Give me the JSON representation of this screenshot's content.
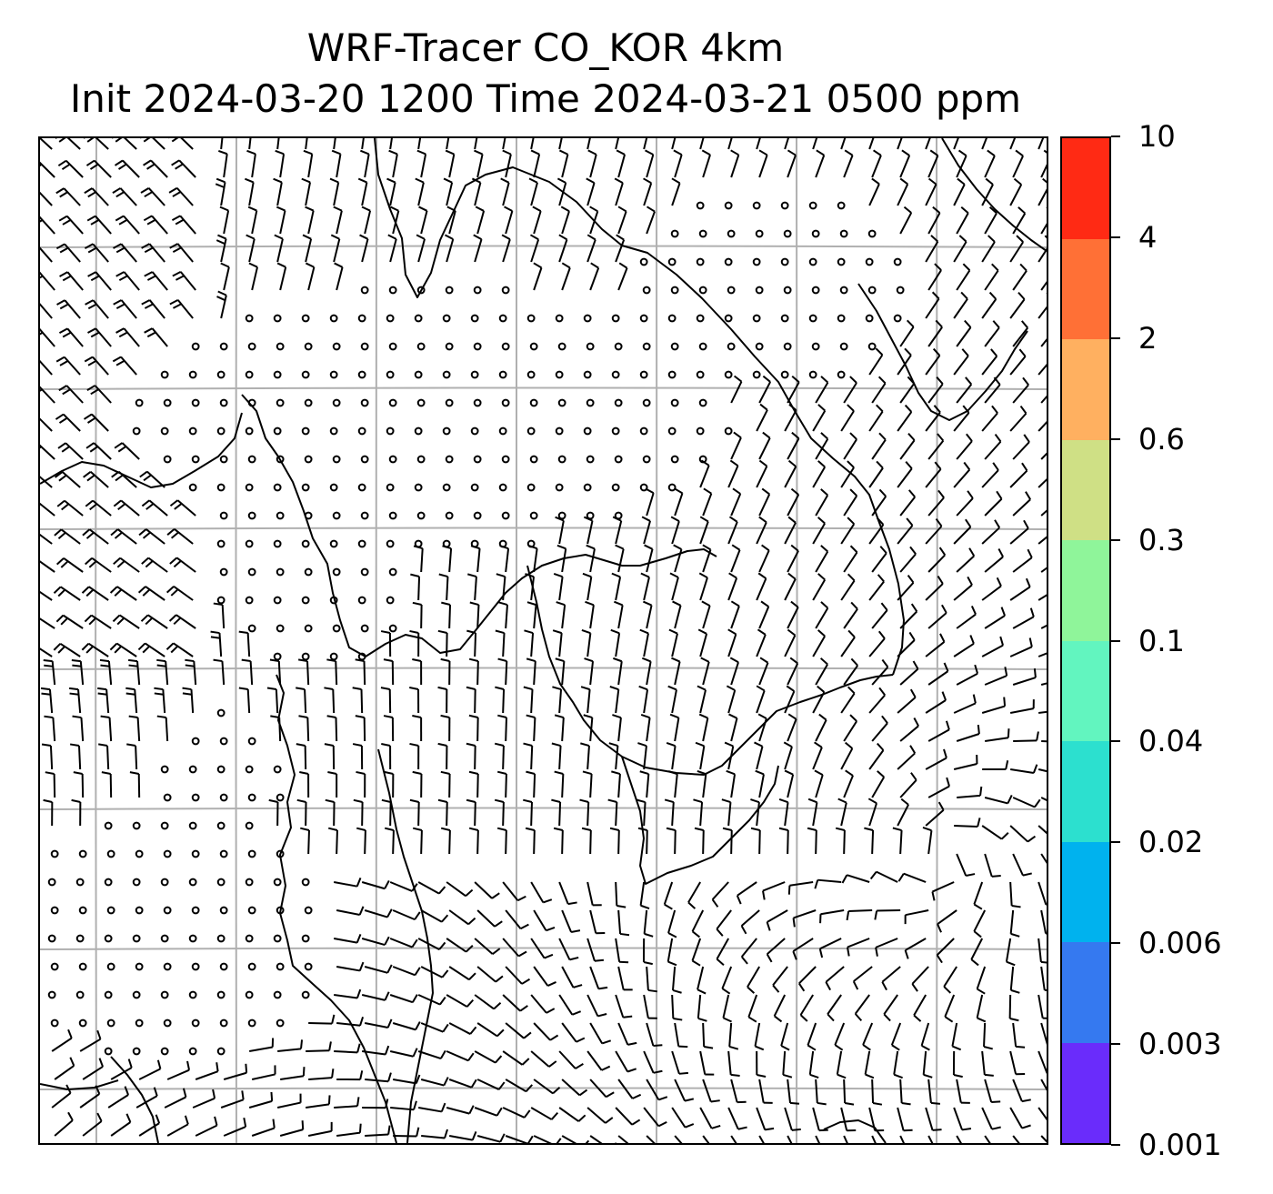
{
  "header": {
    "title_line1": "WRF-Tracer CO_KOR 4km",
    "title_line2": "Init 2024-03-20 1200 Time 2024-03-21 0500 ppm"
  },
  "colorbar": {
    "unit": "ppm",
    "levels": [
      "0.001",
      "0.003",
      "0.006",
      "0.02",
      "0.04",
      "0.1",
      "0.3",
      "0.6",
      "2",
      "4",
      "10"
    ],
    "colors": [
      "#6a2cfb",
      "#3579f0",
      "#00b2ee",
      "#2ce0cf",
      "#62f5bf",
      "#8ff59a",
      "#cfe085",
      "#ffb060",
      "#ff7036",
      "#ff2a14"
    ]
  },
  "map": {
    "gridline_color": "#b0b0b0",
    "coastline_color": "#000000",
    "wind_symbol": "wind-barb",
    "calm_symbol": "calm-circle"
  }
}
